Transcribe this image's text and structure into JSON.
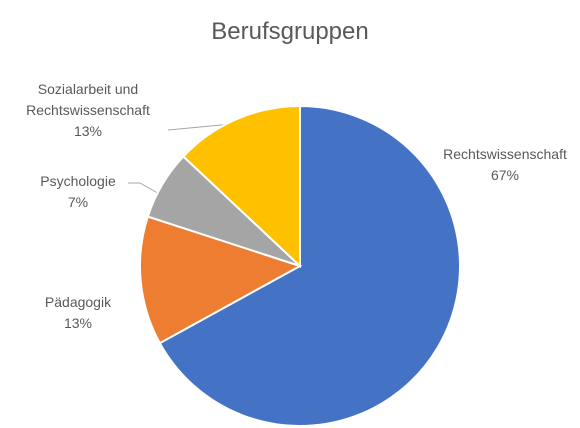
{
  "chart_data": {
    "type": "pie",
    "title": "Berufsgruppen",
    "categories": [
      "Rechtswissenschaft",
      "Pädagogik",
      "Psychologie",
      "Sozialarbeit und Rechtswissenschaft"
    ],
    "values": [
      67,
      13,
      7,
      13
    ],
    "value_labels": [
      "67%",
      "13%",
      "7%",
      "13%"
    ],
    "colors": [
      "#4472c4",
      "#ed7d31",
      "#a5a5a5",
      "#ffc000"
    ]
  }
}
